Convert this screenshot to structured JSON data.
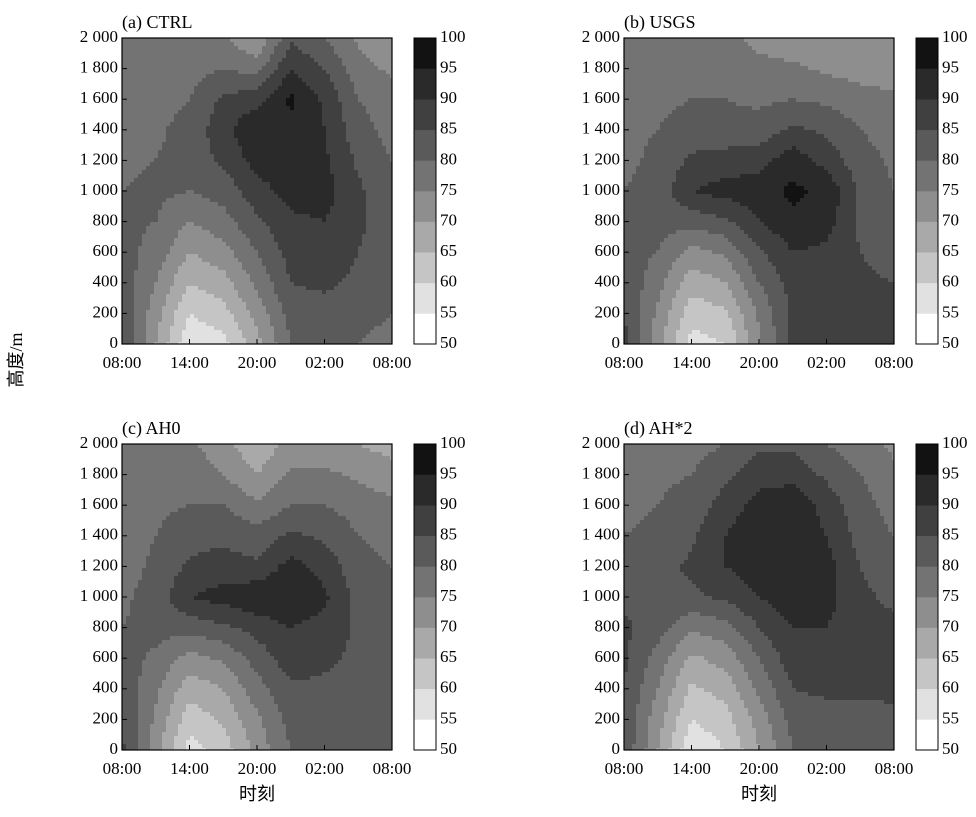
{
  "figure": {
    "ylabel": "高度/m",
    "xlabel": "时刻"
  },
  "colorbar": {
    "levels": [
      50,
      55,
      60,
      65,
      70,
      75,
      80,
      85,
      90,
      95,
      100
    ],
    "colors": [
      "#ffffff",
      "#e1e1e1",
      "#c5c5c5",
      "#a9a9a9",
      "#8e8e8e",
      "#737373",
      "#5a5a5a",
      "#404040",
      "#2a2a2a",
      "#121212"
    ]
  },
  "chart_data": [
    {
      "type": "heatmap",
      "title": "(a) CTRL",
      "x": [
        "08:00",
        "14:00",
        "20:00",
        "02:00",
        "08:00"
      ],
      "y": [
        0,
        200,
        400,
        600,
        800,
        1000,
        1200,
        1400,
        1600,
        1800,
        2000
      ],
      "ytick_labels": [
        "0",
        "200",
        "400",
        "600",
        "800",
        "1 000",
        "1 200",
        "1 400",
        "1 600",
        "1 800",
        "2 000"
      ],
      "ylim": [
        0,
        2000
      ],
      "values": [
        [
          85,
          70,
          56,
          58,
          68,
          80,
          80,
          80,
          78
        ],
        [
          84,
          72,
          60,
          63,
          72,
          82,
          83,
          82,
          80
        ],
        [
          83,
          75,
          65,
          68,
          76,
          85,
          86,
          84,
          82
        ],
        [
          82,
          78,
          70,
          73,
          80,
          87,
          88,
          85,
          82
        ],
        [
          81,
          80,
          75,
          78,
          84,
          89,
          90,
          86,
          82
        ],
        [
          80,
          81,
          80,
          82,
          88,
          92,
          92,
          86,
          81
        ],
        [
          79,
          80,
          82,
          86,
          92,
          93,
          91,
          84,
          80
        ],
        [
          78,
          79,
          82,
          88,
          95,
          94,
          90,
          82,
          78
        ],
        [
          77,
          78,
          80,
          86,
          88,
          96,
          89,
          80,
          77
        ],
        [
          76,
          77,
          78,
          80,
          78,
          90,
          85,
          77,
          74
        ],
        [
          75,
          76,
          76,
          76,
          70,
          84,
          80,
          74,
          70
        ]
      ]
    },
    {
      "type": "heatmap",
      "title": "(b) USGS",
      "x": [
        "08:00",
        "14:00",
        "20:00",
        "02:00",
        "08:00"
      ],
      "y": [
        0,
        200,
        400,
        600,
        800,
        1000,
        1200,
        1400,
        1600,
        1800,
        2000
      ],
      "ytick_labels": [
        "0",
        "200",
        "400",
        "600",
        "800",
        "1 000",
        "1 200",
        "1 400",
        "1 600",
        "1 800",
        "2 000"
      ],
      "ylim": [
        0,
        2000
      ],
      "values": [
        [
          87,
          72,
          58,
          60,
          74,
          86,
          88,
          88,
          87
        ],
        [
          85,
          74,
          62,
          64,
          76,
          86,
          88,
          87,
          86
        ],
        [
          84,
          77,
          67,
          70,
          80,
          87,
          88,
          86,
          85
        ],
        [
          82,
          80,
          73,
          76,
          84,
          90,
          89,
          85,
          83
        ],
        [
          81,
          82,
          82,
          84,
          90,
          94,
          92,
          84,
          81
        ],
        [
          80,
          82,
          90,
          92,
          93,
          96,
          94,
          84,
          80
        ],
        [
          79,
          81,
          86,
          87,
          88,
          93,
          88,
          82,
          79
        ],
        [
          79,
          80,
          82,
          82,
          82,
          86,
          84,
          80,
          78
        ],
        [
          78,
          79,
          80,
          80,
          79,
          80,
          79,
          77,
          76
        ],
        [
          78,
          78,
          78,
          78,
          76,
          76,
          74,
          73,
          72
        ],
        [
          78,
          77,
          77,
          76,
          74,
          72,
          70,
          70,
          70
        ]
      ]
    },
    {
      "type": "heatmap",
      "title": "(c) AH0",
      "x": [
        "08:00",
        "14:00",
        "20:00",
        "02:00",
        "08:00"
      ],
      "y": [
        0,
        200,
        400,
        600,
        800,
        1000,
        1200,
        1400,
        1600,
        1800,
        2000
      ],
      "ytick_labels": [
        "0",
        "200",
        "400",
        "600",
        "800",
        "1 000",
        "1 200",
        "1 400",
        "1 600",
        "1 800",
        "2 000"
      ],
      "ylim": [
        0,
        2000
      ],
      "values": [
        [
          86,
          72,
          58,
          62,
          72,
          80,
          80,
          80,
          82
        ],
        [
          85,
          74,
          62,
          66,
          74,
          82,
          82,
          82,
          83
        ],
        [
          84,
          76,
          67,
          70,
          78,
          84,
          84,
          83,
          84
        ],
        [
          82,
          79,
          73,
          76,
          82,
          88,
          86,
          84,
          83
        ],
        [
          80,
          82,
          82,
          84,
          87,
          90,
          88,
          84,
          82
        ],
        [
          79,
          82,
          90,
          92,
          94,
          95,
          91,
          83,
          81
        ],
        [
          78,
          81,
          86,
          87,
          86,
          92,
          88,
          82,
          80
        ],
        [
          77,
          80,
          83,
          84,
          82,
          86,
          84,
          80,
          78
        ],
        [
          77,
          79,
          80,
          80,
          76,
          80,
          80,
          78,
          76
        ],
        [
          76,
          78,
          78,
          75,
          70,
          76,
          76,
          74,
          72
        ],
        [
          76,
          77,
          76,
          72,
          66,
          72,
          72,
          70,
          68
        ]
      ]
    },
    {
      "type": "heatmap",
      "title": "(d) AH*2",
      "x": [
        "08:00",
        "14:00",
        "20:00",
        "02:00",
        "08:00"
      ],
      "y": [
        0,
        200,
        400,
        600,
        800,
        1000,
        1200,
        1400,
        1600,
        1800,
        2000
      ],
      "ytick_labels": [
        "0",
        "200",
        "400",
        "600",
        "800",
        "1 000",
        "1 200",
        "1 400",
        "1 600",
        "1 800",
        "2 000"
      ],
      "ylim": [
        0,
        2000
      ],
      "values": [
        [
          84,
          70,
          56,
          60,
          70,
          80,
          80,
          80,
          82
        ],
        [
          84,
          72,
          60,
          63,
          72,
          82,
          83,
          83,
          84
        ],
        [
          85,
          75,
          64,
          67,
          76,
          85,
          86,
          86,
          86
        ],
        [
          86,
          78,
          69,
          72,
          80,
          88,
          88,
          87,
          88
        ],
        [
          86,
          82,
          76,
          78,
          85,
          90,
          90,
          87,
          86
        ],
        [
          84,
          84,
          84,
          86,
          90,
          93,
          92,
          86,
          84
        ],
        [
          82,
          83,
          86,
          90,
          93,
          94,
          92,
          85,
          82
        ],
        [
          80,
          81,
          84,
          90,
          95,
          94,
          90,
          83,
          80
        ],
        [
          79,
          80,
          82,
          87,
          92,
          94,
          88,
          82,
          78
        ],
        [
          78,
          79,
          80,
          84,
          88,
          88,
          84,
          80,
          76
        ],
        [
          77,
          78,
          78,
          80,
          84,
          84,
          80,
          77,
          74
        ]
      ]
    }
  ]
}
